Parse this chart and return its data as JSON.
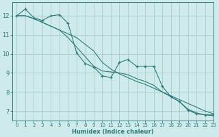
{
  "xlabel": "Humidex (Indice chaleur)",
  "bg_color": "#ceeaea",
  "grid_color": "#aacccc",
  "line_color": "#2d7a7a",
  "xlim": [
    -0.5,
    23
  ],
  "ylim": [
    6.5,
    12.7
  ],
  "yticks": [
    7,
    8,
    9,
    10,
    11,
    12
  ],
  "xticks": [
    0,
    1,
    2,
    3,
    4,
    5,
    6,
    7,
    8,
    9,
    10,
    11,
    12,
    13,
    14,
    15,
    16,
    17,
    18,
    19,
    20,
    21,
    22,
    23
  ],
  "series1": [
    12.0,
    12.35,
    11.9,
    11.75,
    12.0,
    12.05,
    11.6,
    10.05,
    9.5,
    9.3,
    8.85,
    8.75,
    9.55,
    9.7,
    9.35,
    9.35,
    9.35,
    8.3,
    7.75,
    7.5,
    7.05,
    6.85,
    6.8,
    6.8
  ],
  "series2": [
    12.0,
    12.0,
    11.85,
    11.65,
    11.45,
    11.25,
    11.05,
    10.85,
    10.5,
    10.15,
    9.55,
    9.2,
    8.95,
    8.75,
    8.55,
    8.4,
    8.2,
    8.0,
    7.8,
    7.6,
    7.4,
    7.2,
    7.0,
    6.85
  ],
  "series3": [
    12.0,
    12.0,
    11.85,
    11.65,
    11.45,
    11.25,
    10.85,
    10.35,
    9.85,
    9.35,
    9.1,
    9.05,
    9.0,
    8.9,
    8.7,
    8.55,
    8.35,
    8.0,
    7.75,
    7.5,
    7.1,
    6.9,
    6.8,
    6.75
  ]
}
